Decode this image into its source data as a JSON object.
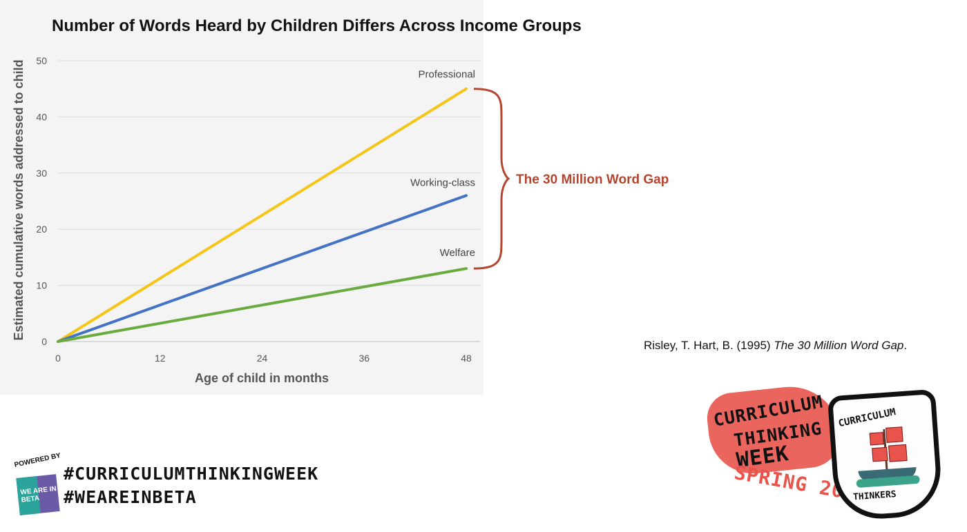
{
  "page": {
    "title": "Number of Words Heard by Children Differs Across Income Groups",
    "citation": {
      "authors": "Risley, T. Hart, B. (1995)",
      "work": "The 30 Million Word Gap",
      "suffix": "."
    },
    "hashtags": [
      "#CURRICULUMTHINKINGWEEK",
      "#WEAREINBETA"
    ],
    "powered_by": {
      "label": "POWERED BY",
      "box_text": "WE ARE IN BETA"
    },
    "badge": {
      "line1": "CURRICULUM",
      "line2": "THINKING",
      "line3": "WEEK",
      "season": "SPRING 2022",
      "shield_top": "CURRICULUM",
      "shield_bottom": "THINKERS"
    }
  },
  "chart_data": {
    "type": "line",
    "title": "Number of Words Heard by Children Differs Across Income Groups",
    "xlabel": "Age of child in months",
    "ylabel": "Estimated cumulative words addressed to child",
    "xlim": [
      0,
      48
    ],
    "ylim": [
      0,
      50
    ],
    "x_ticks": [
      0,
      12,
      24,
      36,
      48
    ],
    "y_ticks": [
      0,
      10,
      20,
      30,
      40,
      50
    ],
    "grid": "horizontal",
    "series": [
      {
        "name": "Professional",
        "color": "#f5c518",
        "x": [
          0,
          48
        ],
        "y": [
          0,
          45
        ]
      },
      {
        "name": "Working-class",
        "color": "#4472c4",
        "x": [
          0,
          48
        ],
        "y": [
          0,
          26
        ]
      },
      {
        "name": "Welfare",
        "color": "#6aab3f",
        "x": [
          0,
          48
        ],
        "y": [
          0,
          13
        ]
      }
    ],
    "annotation": {
      "text": "The 30 Million Word Gap",
      "color": "#b5452f",
      "from_y": 13,
      "to_y": 45
    }
  }
}
